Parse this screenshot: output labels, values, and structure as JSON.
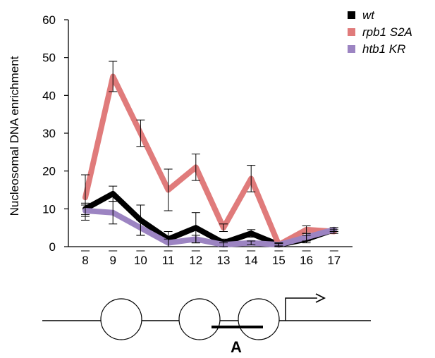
{
  "chart_data": {
    "type": "line",
    "title": "",
    "xlabel": "",
    "ylabel": "Nucleosomal DNA enrichment",
    "categories": [
      "8",
      "9",
      "10",
      "11",
      "12",
      "13",
      "14",
      "15",
      "16",
      "17"
    ],
    "ylim": [
      0,
      60
    ],
    "yticks": [
      "0",
      "10",
      "20",
      "30",
      "40",
      "50",
      "60"
    ],
    "grid": false,
    "legend_position": "top-right",
    "series": [
      {
        "name": "wt",
        "color": "#000000",
        "values": [
          10,
          14,
          7,
          2,
          5,
          1,
          3.5,
          0.5,
          2,
          4.5
        ],
        "errors": [
          1.5,
          2,
          4,
          2,
          4,
          1,
          1,
          0.5,
          1,
          0.5
        ]
      },
      {
        "name": "rpb1 S2A",
        "color": "#e07b7b",
        "values": [
          13,
          45,
          30,
          15,
          21,
          5,
          18,
          0.5,
          4.5,
          4
        ],
        "errors": [
          6,
          4,
          3.5,
          5.5,
          3.5,
          1,
          3.5,
          0.5,
          1,
          0.5
        ]
      },
      {
        "name": "htb1 KR",
        "color": "#9c84c2",
        "values": [
          9.5,
          9,
          5,
          1,
          2,
          0.5,
          1,
          0.5,
          2.5,
          4.5
        ],
        "errors": [
          1.5,
          3,
          2,
          1,
          1,
          0.5,
          0.5,
          0.3,
          1,
          0.5
        ]
      }
    ]
  },
  "diagram": {
    "region_label": "A",
    "element_names": [
      "dna-line",
      "nucleosome-1",
      "nucleosome-2",
      "nucleosome-3",
      "region-bar",
      "transcription-arrow"
    ]
  }
}
